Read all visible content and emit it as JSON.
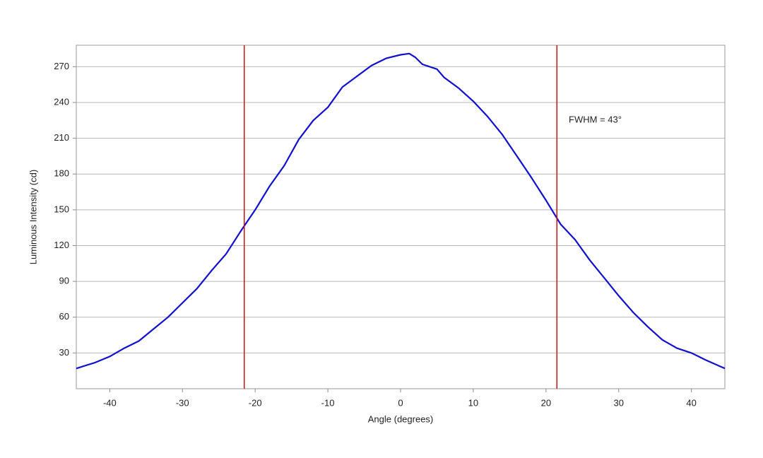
{
  "chart_data": {
    "type": "line",
    "xlabel": "Angle (degrees)",
    "ylabel": "Luminous Intensity (cd)",
    "x": [
      -44.6,
      -42,
      -40,
      -38,
      -36,
      -34,
      -32,
      -30,
      -28,
      -26,
      -24,
      -22,
      -20,
      -18,
      -16,
      -14,
      -12,
      -10,
      -8,
      -6,
      -4,
      -2,
      0,
      1.2,
      2,
      3,
      5,
      6,
      8,
      10,
      12,
      14,
      16,
      18,
      20,
      22,
      24,
      26,
      28,
      30,
      32,
      34,
      36,
      38,
      40,
      42,
      44.6
    ],
    "series": [
      {
        "name": "Luminous Intensity",
        "color": "#1010d0",
        "values": [
          17,
          22,
          27,
          34,
          40,
          50,
          60,
          72,
          84,
          99,
          113,
          132,
          150,
          170,
          187,
          209,
          225,
          236,
          253,
          262,
          271,
          277,
          280,
          281,
          278,
          272,
          268,
          261,
          252,
          241,
          228,
          213,
          195,
          177,
          158,
          138,
          125,
          108,
          93,
          78,
          64,
          52,
          41,
          34,
          30,
          24,
          17
        ]
      }
    ],
    "vlines": [
      -21.5,
      21.5
    ],
    "vline_color": "#cc1111",
    "annotation": "FWHM = 43°",
    "xlim": [
      -44.6,
      44.6
    ],
    "ylim": [
      0,
      288
    ],
    "xticks": [
      -40,
      -30,
      -20,
      -10,
      0,
      10,
      20,
      30,
      40
    ],
    "yticks": [
      30,
      60,
      90,
      120,
      150,
      180,
      210,
      240,
      270
    ],
    "grid": true
  }
}
